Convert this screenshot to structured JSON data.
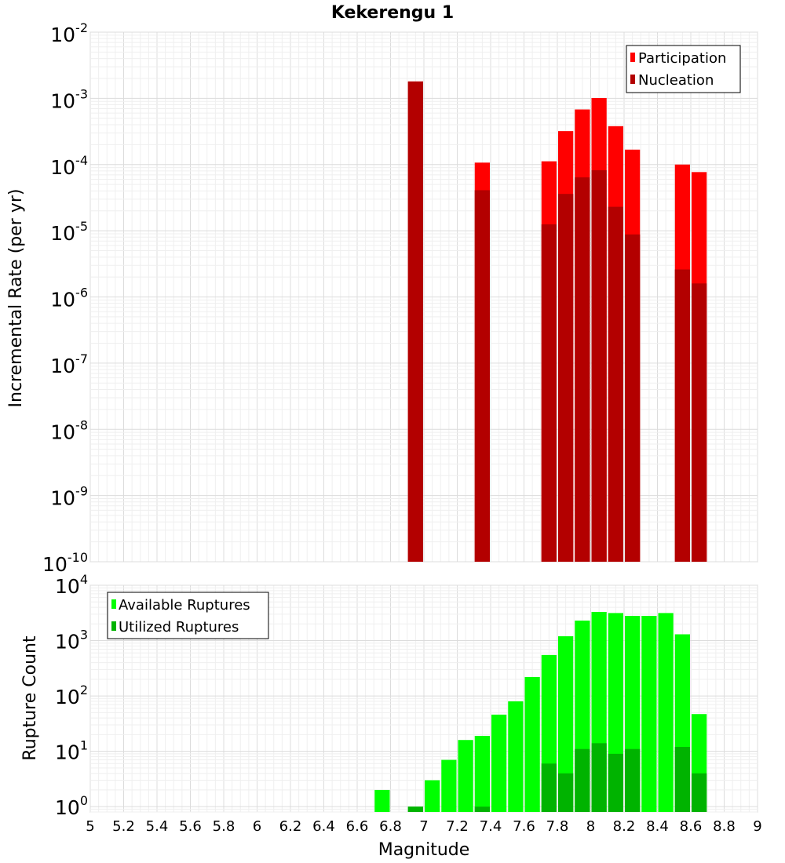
{
  "chart_data": [
    {
      "type": "bar",
      "title": "Kekerengu 1",
      "xlabel": "",
      "ylabel": "Incremental Rate (per yr)",
      "yscale": "log",
      "ylim": [
        1e-10,
        0.01
      ],
      "xlim": [
        5,
        9
      ],
      "grid": true,
      "legend_position": "top-right",
      "bar_width": 0.1,
      "series": [
        {
          "name": "Participation",
          "color": "#ff0000",
          "x": [
            6.95,
            7.35,
            7.75,
            7.85,
            7.95,
            8.05,
            8.15,
            8.25,
            8.55,
            8.65
          ],
          "values": [
            0.0018,
            0.000107,
            0.000112,
            0.00032,
            0.00068,
            0.00101,
            0.00038,
            0.000168,
            0.0001,
            7.7e-05
          ]
        },
        {
          "name": "Nucleation",
          "color": "#b30000",
          "x": [
            6.95,
            7.35,
            7.75,
            7.85,
            7.95,
            8.05,
            8.15,
            8.25,
            8.55,
            8.65
          ],
          "values": [
            0.0018,
            4.1e-05,
            1.25e-05,
            3.6e-05,
            6.4e-05,
            8.2e-05,
            2.3e-05,
            8.8e-06,
            2.6e-06,
            1.6e-06
          ]
        }
      ]
    },
    {
      "type": "bar",
      "title": "",
      "xlabel": "Magnitude",
      "ylabel": "Rupture Count",
      "yscale": "log",
      "ylim": [
        0.8,
        10000
      ],
      "xlim": [
        5,
        9
      ],
      "grid": true,
      "legend_position": "top-left",
      "bar_width": 0.1,
      "xticks": [
        "5",
        "5.2",
        "5.4",
        "5.6",
        "5.8",
        "6",
        "6.2",
        "6.4",
        "6.6",
        "6.8",
        "7",
        "7.2",
        "7.4",
        "7.6",
        "7.8",
        "8",
        "8.2",
        "8.4",
        "8.6",
        "8.8",
        "9"
      ],
      "series": [
        {
          "name": "Available Ruptures",
          "color": "#00ff00",
          "x": [
            6.75,
            6.95,
            7.05,
            7.15,
            7.25,
            7.35,
            7.45,
            7.55,
            7.65,
            7.75,
            7.85,
            7.95,
            8.05,
            8.15,
            8.25,
            8.35,
            8.45,
            8.55,
            8.65
          ],
          "values": [
            2,
            1,
            3,
            7,
            16,
            19,
            46,
            80,
            220,
            550,
            1200,
            2300,
            3300,
            3150,
            2800,
            2800,
            3150,
            1300,
            47
          ]
        },
        {
          "name": "Utilized Ruptures",
          "color": "#00b300",
          "x": [
            6.95,
            7.35,
            7.75,
            7.85,
            7.95,
            8.05,
            8.15,
            8.25,
            8.55,
            8.65
          ],
          "values": [
            1,
            1,
            6,
            4,
            11,
            14,
            9,
            11,
            12,
            4
          ]
        }
      ]
    }
  ]
}
